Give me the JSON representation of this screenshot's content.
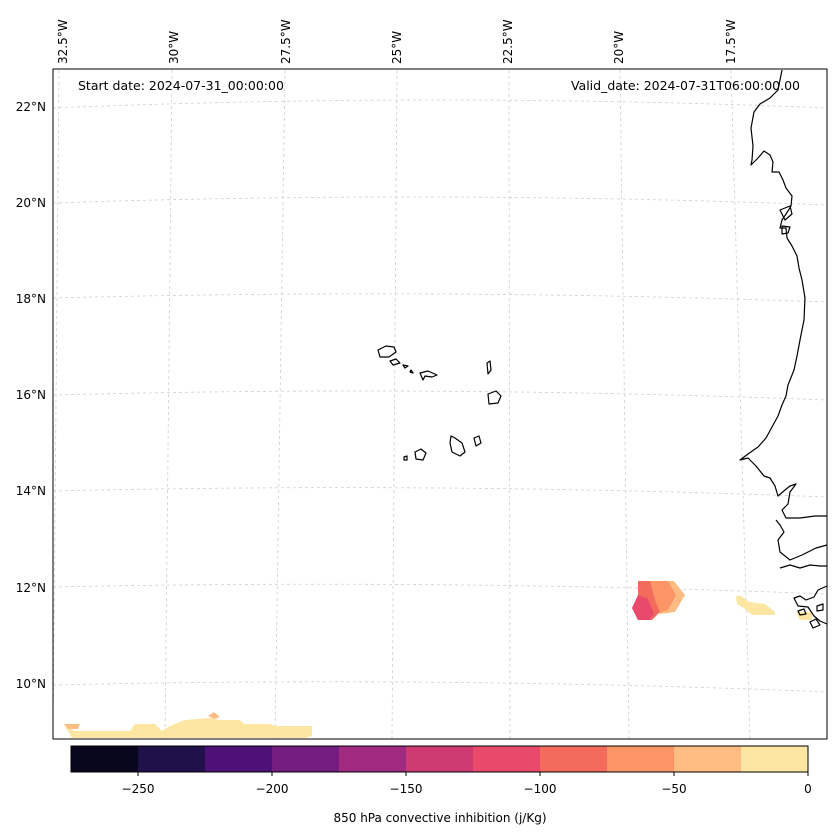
{
  "map": {
    "start_date": "Start date: 2024-07-31_00:00:00",
    "valid_date": "Valid_date: 2024-07-31T06:00:00.00",
    "longitude_labels": [
      "32.5°W",
      "30°W",
      "27.5°W",
      "25°W",
      "22.5°W",
      "20°W",
      "17.5°W"
    ],
    "latitude_labels": [
      "22°N",
      "20°N",
      "18°N",
      "16°N",
      "14°N",
      "12°N",
      "10°N"
    ],
    "gridlines": true,
    "land_outline_color": "#000000"
  },
  "colorbar": {
    "label": "850 hPa convective inhibition (j/Kg)",
    "tick_labels": [
      "−250",
      "−200",
      "−150",
      "−100",
      "−50",
      "0"
    ],
    "range": [
      -275,
      0
    ],
    "levels": [
      -275,
      -250,
      -225,
      -200,
      -175,
      -150,
      -125,
      -100,
      -75,
      -50,
      -25,
      0
    ],
    "colors": [
      "#07061c",
      "#20114b",
      "#4d1178",
      "#751c81",
      "#9f2a80",
      "#cc3a71",
      "#e9496b",
      "#f36b5c",
      "#fc9566",
      "#fdbd82",
      "#fde5a2"
    ],
    "colormap": "magma"
  },
  "cin_regions": [
    {
      "location": "12°N, 20°W",
      "approx_min_value": -100
    },
    {
      "location": "11.5°N, 16.5°W",
      "approx_min_value": -25
    },
    {
      "location": "9°N, 33°W–26.5°W",
      "approx_min_value": -25
    }
  ]
}
